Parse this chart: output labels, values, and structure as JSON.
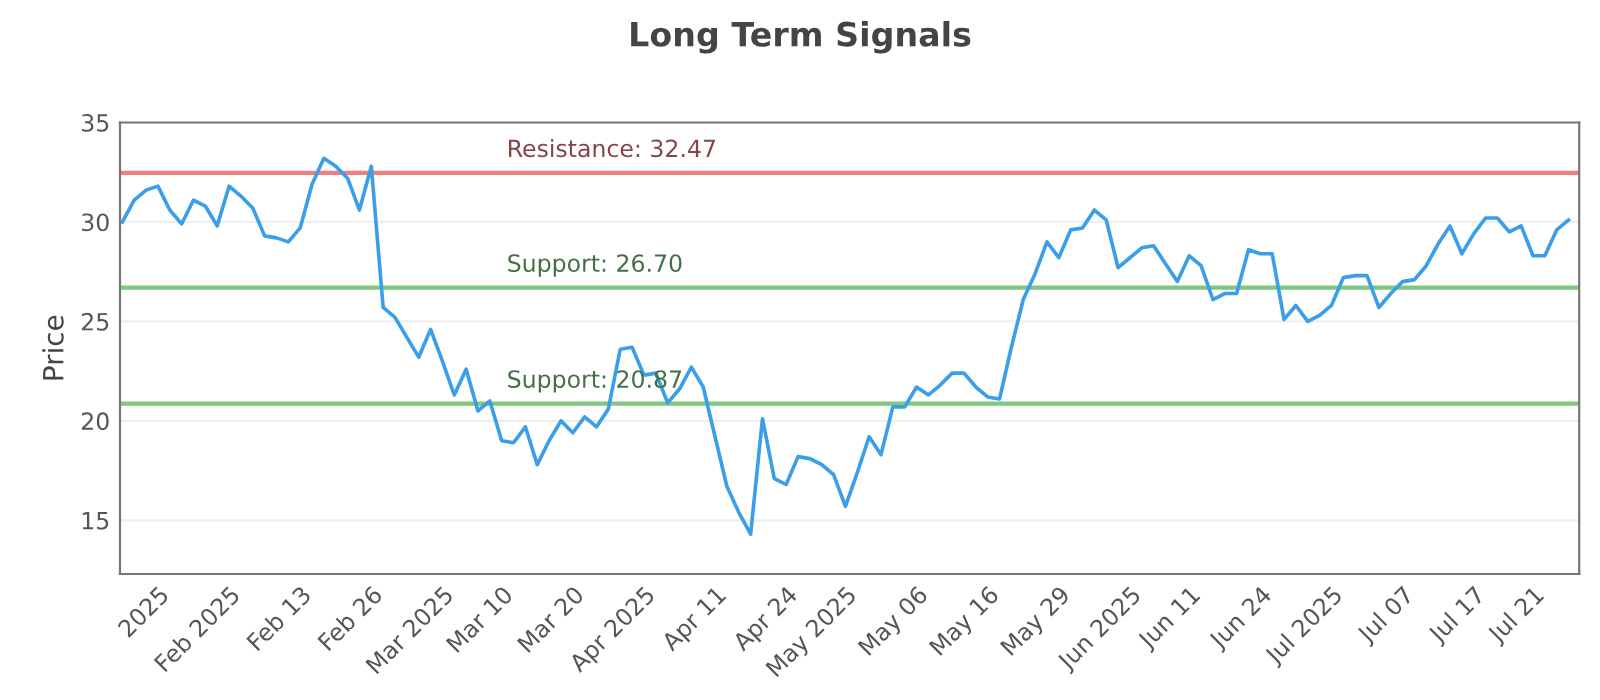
{
  "chart_data": {
    "type": "line",
    "title": "Long Term Signals",
    "ylabel": "Price",
    "categories": [
      null,
      null,
      null,
      "2025",
      null,
      null,
      null,
      null,
      null,
      "Feb 2025",
      null,
      null,
      null,
      null,
      null,
      "Feb 13",
      null,
      null,
      null,
      null,
      null,
      "Feb 26",
      null,
      null,
      null,
      null,
      null,
      "Mar 2025",
      null,
      null,
      null,
      null,
      "Mar 10",
      null,
      null,
      null,
      null,
      null,
      "Mar 20",
      null,
      null,
      null,
      null,
      null,
      "Apr 2025",
      null,
      null,
      null,
      null,
      null,
      "Apr 11",
      null,
      null,
      null,
      null,
      null,
      "Apr 24",
      null,
      null,
      null,
      null,
      "May 2025",
      null,
      null,
      null,
      null,
      null,
      "May 06",
      null,
      null,
      null,
      null,
      null,
      "May 16",
      null,
      null,
      null,
      null,
      null,
      "May 29",
      null,
      null,
      null,
      null,
      null,
      "Jun 2025",
      null,
      null,
      null,
      null,
      "Jun 11",
      null,
      null,
      null,
      null,
      null,
      "Jun 24",
      null,
      null,
      null,
      null,
      null,
      "Jul 2025",
      null,
      null,
      null,
      null,
      null,
      "Jul 07",
      null,
      null,
      null,
      null,
      null,
      "Jul 17",
      null,
      null,
      null,
      null,
      "Jul 21",
      null,
      null,
      null
    ],
    "series": [
      {
        "color": "#3a9ee8",
        "values": [
          30.0,
          31.1,
          31.6,
          31.8,
          30.6,
          29.9,
          31.1,
          30.8,
          29.8,
          31.8,
          31.3,
          30.7,
          29.3,
          29.2,
          29.0,
          29.7,
          31.9,
          33.2,
          32.8,
          32.2,
          30.6,
          32.8,
          25.7,
          25.2,
          24.2,
          23.2,
          24.6,
          23.0,
          21.3,
          22.6,
          20.5,
          21.0,
          19.0,
          18.9,
          19.7,
          17.8,
          19.0,
          20.0,
          19.4,
          20.2,
          19.7,
          20.6,
          23.6,
          23.7,
          22.3,
          22.4,
          20.9,
          21.6,
          22.7,
          21.7,
          19.2,
          16.7,
          15.4,
          14.3,
          20.1,
          17.1,
          16.8,
          18.2,
          18.1,
          17.8,
          17.3,
          15.7,
          17.4,
          19.2,
          18.3,
          20.7,
          20.7,
          21.7,
          21.3,
          21.8,
          22.4,
          22.4,
          21.7,
          21.2,
          21.1,
          23.7,
          26.1,
          27.4,
          29.0,
          28.2,
          29.6,
          29.7,
          30.6,
          30.1,
          27.7,
          28.2,
          28.7,
          28.8,
          27.9,
          27.0,
          28.3,
          27.8,
          26.1,
          26.4,
          26.4,
          28.6,
          28.4,
          28.4,
          25.1,
          25.8,
          25.0,
          25.3,
          25.8,
          27.2,
          27.3,
          27.3,
          25.7,
          26.4,
          27.0,
          27.1,
          27.8,
          28.9,
          29.8,
          28.4,
          29.4,
          30.2,
          30.2,
          29.5,
          29.8,
          28.3,
          28.3,
          29.6,
          30.1
        ]
      }
    ],
    "ylim": [
      12.3,
      35
    ],
    "yticks": [
      15,
      20,
      25,
      30,
      35
    ],
    "grid": "y",
    "legend": false,
    "marker": "none",
    "line_style": "solid",
    "ref_lines": [
      {
        "axis": "y",
        "value": 32.47,
        "label": "Resistance: 32.47",
        "color": "#f08080"
      },
      {
        "axis": "y",
        "value": 26.7,
        "label": "Support: 26.70",
        "color": "#7fc97f"
      },
      {
        "axis": "y",
        "value": 20.87,
        "label": "Support: 20.87",
        "color": "#7fc97f"
      }
    ]
  }
}
